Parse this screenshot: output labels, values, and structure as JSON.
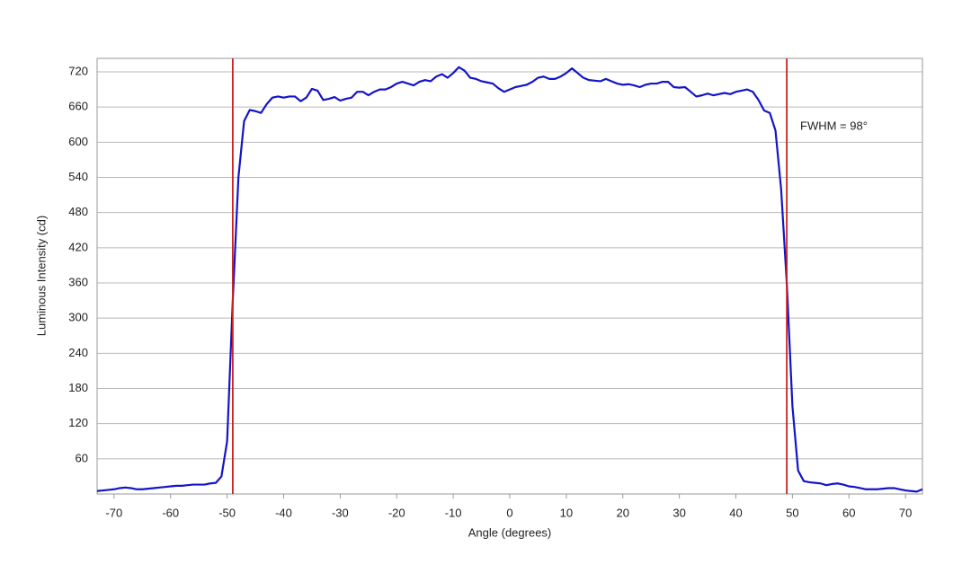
{
  "chart_data": {
    "type": "line",
    "xlabel": "Angle (degrees)",
    "ylabel": "Luminous Intensity (cd)",
    "annotation": "FWHM = 98°",
    "x": [
      -73,
      -72,
      -71,
      -70,
      -69,
      -68,
      -67,
      -66,
      -65,
      -64,
      -63,
      -62,
      -61,
      -60,
      -59,
      -58,
      -57,
      -56,
      -55,
      -54,
      -53,
      -52,
      -51,
      -50,
      -49,
      -48,
      -47,
      -46,
      -45,
      -44,
      -43,
      -42,
      -41,
      -40,
      -39,
      -38,
      -37,
      -36,
      -35,
      -34,
      -33,
      -32,
      -31,
      -30,
      -29,
      -28,
      -27,
      -26,
      -25,
      -24,
      -23,
      -22,
      -21,
      -20,
      -19,
      -18,
      -17,
      -16,
      -15,
      -14,
      -13,
      -12,
      -11,
      -10,
      -9,
      -8,
      -7,
      -6,
      -5,
      -4,
      -3,
      -2,
      -1,
      0,
      1,
      2,
      3,
      4,
      5,
      6,
      7,
      8,
      9,
      10,
      11,
      12,
      13,
      14,
      15,
      16,
      17,
      18,
      19,
      20,
      21,
      22,
      23,
      24,
      25,
      26,
      27,
      28,
      29,
      30,
      31,
      32,
      33,
      34,
      35,
      36,
      37,
      38,
      39,
      40,
      41,
      42,
      43,
      44,
      45,
      46,
      47,
      48,
      49,
      50,
      51,
      52,
      53,
      54,
      55,
      56,
      57,
      58,
      59,
      60,
      61,
      62,
      63,
      64,
      65,
      66,
      67,
      68,
      69,
      70,
      71,
      72,
      73
    ],
    "series": [
      {
        "color": "#1414c8",
        "values": [
          5,
          6,
          7,
          8,
          10,
          11,
          10,
          8,
          8,
          9,
          10,
          11,
          12,
          13,
          14,
          14,
          15,
          16,
          16,
          16,
          18,
          19,
          30,
          90,
          330,
          540,
          636,
          655,
          653,
          650,
          665,
          676,
          678,
          676,
          678,
          678,
          670,
          676,
          691,
          688,
          672,
          674,
          677,
          671,
          674,
          676,
          686,
          686,
          680,
          686,
          690,
          690,
          694,
          700,
          703,
          700,
          697,
          703,
          706,
          704,
          712,
          716,
          710,
          718,
          728,
          722,
          710,
          708,
          704,
          702,
          700,
          692,
          686,
          690,
          694,
          696,
          698,
          703,
          710,
          712,
          708,
          708,
          712,
          718,
          726,
          718,
          710,
          706,
          705,
          704,
          708,
          704,
          700,
          698,
          699,
          697,
          694,
          698,
          700,
          700,
          703,
          703,
          694,
          693,
          694,
          686,
          678,
          680,
          683,
          680,
          682,
          684,
          682,
          686,
          688,
          690,
          686,
          672,
          654,
          650,
          620,
          520,
          360,
          150,
          40,
          22,
          20,
          19,
          18,
          15,
          17,
          18,
          16,
          13,
          12,
          10,
          8,
          8,
          8,
          9,
          10,
          10,
          8,
          6,
          5,
          4,
          8
        ]
      }
    ],
    "vlines": [
      -49,
      49
    ],
    "vline_color": "#cc2222",
    "xlim": [
      -73,
      73
    ],
    "xticks": [
      -70,
      -60,
      -50,
      -40,
      -30,
      -20,
      -10,
      0,
      10,
      20,
      30,
      40,
      50,
      60,
      70
    ],
    "ylim": [
      0,
      743
    ],
    "yticks": [
      60,
      120,
      180,
      240,
      300,
      360,
      420,
      480,
      540,
      600,
      660,
      720
    ],
    "grid": true
  }
}
